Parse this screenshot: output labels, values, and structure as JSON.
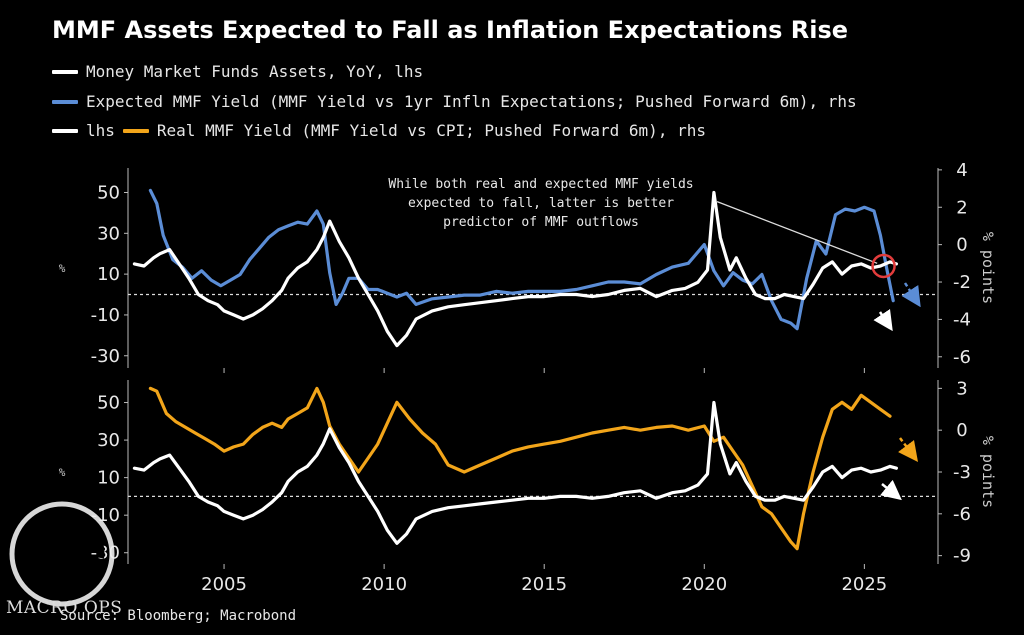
{
  "title": "MMF Assets Expected to Fall as Inflation Expectations Rise",
  "legend": [
    {
      "label": "Money Market Funds Assets, YoY, lhs",
      "color": "#ffffff"
    },
    {
      "label": "Expected MMF Yield (MMF Yield vs 1yr Infln Expectations; Pushed Forward 6m), rhs",
      "color": "#5b8dd6"
    },
    {
      "label_lhs": "lhs",
      "label": "Real MMF Yield (MMF Yield vs CPI; Pushed Forward 6m), rhs",
      "color_lhs": "#ffffff",
      "color": "#f2a51a"
    }
  ],
  "annotation": "While both real and expected MMF yields expected to fall, latter is better predictor of MMF outflows",
  "source": "Source: Bloomberg; Macrobond",
  "logo_text": "MACRO OPS",
  "colors": {
    "white": "#ffffff",
    "blue": "#5b8dd6",
    "orange": "#f2a51a",
    "red": "#e23c3c",
    "background": "#000000"
  },
  "chart_data": [
    {
      "type": "line",
      "panel": "top",
      "xlim": [
        2002.0,
        2027.3
      ],
      "x_ticks": [
        2005,
        2010,
        2015,
        2020,
        2025
      ],
      "ylim_left": [
        -36,
        62
      ],
      "ylim_right": [
        -6.6,
        4.1
      ],
      "ylabel_left": "%",
      "ylabel_right": "% points",
      "left_ticks": [
        50,
        30,
        10,
        -10,
        -30
      ],
      "right_ticks": [
        4,
        2,
        0,
        -2,
        -4,
        -6
      ],
      "zero_line_left": 0,
      "series": [
        {
          "name": "Money Market Funds Assets, YoY, lhs",
          "axis": "left",
          "color": "#ffffff",
          "x": [
            2002.2,
            2002.5,
            2002.8,
            2003.0,
            2003.3,
            2003.6,
            2003.9,
            2004.2,
            2004.5,
            2004.8,
            2005.0,
            2005.3,
            2005.6,
            2005.9,
            2006.2,
            2006.5,
            2006.8,
            2007.0,
            2007.3,
            2007.6,
            2007.9,
            2008.1,
            2008.3,
            2008.6,
            2008.9,
            2009.2,
            2009.5,
            2009.8,
            2010.1,
            2010.4,
            2010.7,
            2011.0,
            2011.5,
            2012.0,
            2012.5,
            2013.0,
            2013.5,
            2014.0,
            2014.5,
            2015.0,
            2015.5,
            2016.0,
            2016.5,
            2017.0,
            2017.5,
            2018.0,
            2018.5,
            2019.0,
            2019.4,
            2019.8,
            2020.1,
            2020.3,
            2020.5,
            2020.8,
            2021.0,
            2021.3,
            2021.6,
            2021.9,
            2022.2,
            2022.5,
            2022.8,
            2023.1,
            2023.4,
            2023.7,
            2024.0,
            2024.3,
            2024.6,
            2024.9,
            2025.2,
            2025.5,
            2025.8,
            2026.0
          ],
          "y": [
            15,
            14,
            18,
            20,
            22,
            15,
            8,
            0,
            -3,
            -5,
            -8,
            -10,
            -12,
            -10,
            -7,
            -3,
            2,
            8,
            13,
            16,
            22,
            28,
            36,
            26,
            18,
            8,
            0,
            -8,
            -18,
            -25,
            -20,
            -12,
            -8,
            -6,
            -5,
            -4,
            -3,
            -2,
            -1,
            -1,
            0,
            0,
            -1,
            0,
            2,
            3,
            -1,
            2,
            3,
            6,
            12,
            50,
            28,
            12,
            18,
            8,
            0,
            -2,
            -2,
            0,
            -1,
            -2,
            5,
            13,
            16,
            10,
            14,
            15,
            13,
            14,
            16,
            15
          ]
        },
        {
          "name": "Expected MMF Yield (MMF Yield vs 1yr Infln Expectations; Pushed Forward 6m), rhs",
          "axis": "right",
          "color": "#5b8dd6",
          "x": [
            2002.7,
            2002.9,
            2003.1,
            2003.4,
            2003.7,
            2004.0,
            2004.3,
            2004.6,
            2004.9,
            2005.2,
            2005.5,
            2005.8,
            2006.1,
            2006.4,
            2006.7,
            2007.0,
            2007.3,
            2007.6,
            2007.9,
            2008.1,
            2008.3,
            2008.5,
            2008.7,
            2008.9,
            2009.2,
            2009.5,
            2009.8,
            2010.1,
            2010.4,
            2010.7,
            2011.0,
            2011.5,
            2012.0,
            2012.5,
            2013.0,
            2013.5,
            2014.0,
            2014.5,
            2015.0,
            2015.5,
            2016.0,
            2016.5,
            2017.0,
            2017.5,
            2018.0,
            2018.5,
            2019.0,
            2019.5,
            2020.0,
            2020.3,
            2020.6,
            2020.9,
            2021.2,
            2021.5,
            2021.8,
            2022.1,
            2022.4,
            2022.7,
            2022.9,
            2023.2,
            2023.5,
            2023.8,
            2024.1,
            2024.4,
            2024.7,
            2025.0,
            2025.3,
            2025.5,
            2025.7,
            2025.9
          ],
          "y": [
            2.9,
            2.2,
            0.5,
            -0.8,
            -1.2,
            -1.8,
            -1.4,
            -1.9,
            -2.2,
            -1.9,
            -1.6,
            -0.8,
            -0.2,
            0.4,
            0.8,
            1.0,
            1.2,
            1.1,
            1.8,
            1.1,
            -1.5,
            -3.2,
            -2.6,
            -1.8,
            -1.8,
            -2.4,
            -2.4,
            -2.6,
            -2.8,
            -2.6,
            -3.2,
            -2.9,
            -2.8,
            -2.7,
            -2.7,
            -2.5,
            -2.6,
            -2.5,
            -2.5,
            -2.5,
            -2.4,
            -2.2,
            -2.0,
            -2.0,
            -2.1,
            -1.6,
            -1.2,
            -1.0,
            0.0,
            -1.4,
            -2.2,
            -1.5,
            -1.9,
            -2.1,
            -1.6,
            -3.0,
            -4.0,
            -4.2,
            -4.5,
            -1.8,
            0.2,
            -0.5,
            1.6,
            1.9,
            1.8,
            2.0,
            1.8,
            0.5,
            -1.3,
            -3.0
          ]
        }
      ],
      "annotation_arrow": {
        "from": [
          2020.4,
          2.3
        ],
        "to": [
          2025.4,
          -1.0
        ]
      },
      "marker": {
        "x": 2025.6,
        "y_left": 14,
        "color": "#e23c3c"
      }
    },
    {
      "type": "line",
      "panel": "bottom",
      "xlim": [
        2002.0,
        2027.3
      ],
      "x_ticks": [
        2005,
        2010,
        2015,
        2020,
        2025
      ],
      "ylim_left": [
        -36,
        62
      ],
      "ylim_right": [
        -9.6,
        3.6
      ],
      "ylabel_left": "%",
      "ylabel_right": "% points",
      "left_ticks": [
        50,
        30,
        10,
        -10,
        -30
      ],
      "right_ticks": [
        3,
        0,
        -3,
        -6,
        -9
      ],
      "x_tick_labels": [
        "2005",
        "2010",
        "2015",
        "2020",
        "2025"
      ],
      "zero_line_left": 0,
      "series": [
        {
          "name": "Money Market Funds Assets, YoY, lhs",
          "axis": "left",
          "color": "#ffffff",
          "x": [
            2002.2,
            2002.5,
            2002.8,
            2003.0,
            2003.3,
            2003.6,
            2003.9,
            2004.2,
            2004.5,
            2004.8,
            2005.0,
            2005.3,
            2005.6,
            2005.9,
            2006.2,
            2006.5,
            2006.8,
            2007.0,
            2007.3,
            2007.6,
            2007.9,
            2008.1,
            2008.3,
            2008.6,
            2008.9,
            2009.2,
            2009.5,
            2009.8,
            2010.1,
            2010.4,
            2010.7,
            2011.0,
            2011.5,
            2012.0,
            2012.5,
            2013.0,
            2013.5,
            2014.0,
            2014.5,
            2015.0,
            2015.5,
            2016.0,
            2016.5,
            2017.0,
            2017.5,
            2018.0,
            2018.5,
            2019.0,
            2019.4,
            2019.8,
            2020.1,
            2020.3,
            2020.5,
            2020.8,
            2021.0,
            2021.3,
            2021.6,
            2021.9,
            2022.2,
            2022.5,
            2022.8,
            2023.1,
            2023.4,
            2023.7,
            2024.0,
            2024.3,
            2024.6,
            2024.9,
            2025.2,
            2025.5,
            2025.8,
            2026.0
          ],
          "y": [
            15,
            14,
            18,
            20,
            22,
            15,
            8,
            0,
            -3,
            -5,
            -8,
            -10,
            -12,
            -10,
            -7,
            -3,
            2,
            8,
            13,
            16,
            22,
            28,
            36,
            26,
            18,
            8,
            0,
            -8,
            -18,
            -25,
            -20,
            -12,
            -8,
            -6,
            -5,
            -4,
            -3,
            -2,
            -1,
            -1,
            0,
            0,
            -1,
            0,
            2,
            3,
            -1,
            2,
            3,
            6,
            12,
            50,
            28,
            12,
            18,
            8,
            0,
            -2,
            -2,
            0,
            -1,
            -2,
            5,
            13,
            16,
            10,
            14,
            15,
            13,
            14,
            16,
            15
          ]
        },
        {
          "name": "Real MMF Yield (MMF Yield vs CPI; Pushed Forward 6m), rhs",
          "axis": "right",
          "color": "#f2a51a",
          "x": [
            2002.7,
            2002.9,
            2003.2,
            2003.5,
            2003.8,
            2004.1,
            2004.4,
            2004.7,
            2005.0,
            2005.3,
            2005.6,
            2005.9,
            2006.2,
            2006.5,
            2006.8,
            2007.0,
            2007.3,
            2007.6,
            2007.9,
            2008.1,
            2008.3,
            2008.6,
            2008.9,
            2009.2,
            2009.5,
            2009.8,
            2010.1,
            2010.4,
            2010.8,
            2011.2,
            2011.6,
            2012.0,
            2012.5,
            2013.0,
            2013.5,
            2014.0,
            2014.5,
            2015.0,
            2015.5,
            2016.0,
            2016.5,
            2017.0,
            2017.5,
            2018.0,
            2018.5,
            2019.0,
            2019.5,
            2020.0,
            2020.3,
            2020.6,
            2020.9,
            2021.2,
            2021.5,
            2021.8,
            2022.1,
            2022.4,
            2022.7,
            2022.9,
            2023.1,
            2023.4,
            2023.7,
            2024.0,
            2024.3,
            2024.6,
            2024.9,
            2025.2,
            2025.5,
            2025.8
          ],
          "y": [
            3.0,
            2.8,
            1.2,
            0.6,
            0.2,
            -0.2,
            -0.6,
            -1.0,
            -1.5,
            -1.2,
            -1.0,
            -0.3,
            0.2,
            0.5,
            0.2,
            0.8,
            1.2,
            1.6,
            3.0,
            2.0,
            0.3,
            -1.0,
            -2.0,
            -3.0,
            -2.0,
            -1.0,
            0.5,
            2.0,
            0.8,
            -0.2,
            -1.0,
            -2.5,
            -3.0,
            -2.5,
            -2.0,
            -1.5,
            -1.2,
            -1.0,
            -0.8,
            -0.5,
            -0.2,
            0.0,
            0.2,
            0.0,
            0.2,
            0.3,
            0.0,
            0.3,
            -0.8,
            -0.5,
            -1.5,
            -2.5,
            -4.0,
            -5.5,
            -6.0,
            -7.0,
            -8.0,
            -8.5,
            -6.0,
            -3.0,
            -0.5,
            1.5,
            2.0,
            1.5,
            2.5,
            2.0,
            1.5,
            1.0
          ]
        }
      ]
    }
  ]
}
